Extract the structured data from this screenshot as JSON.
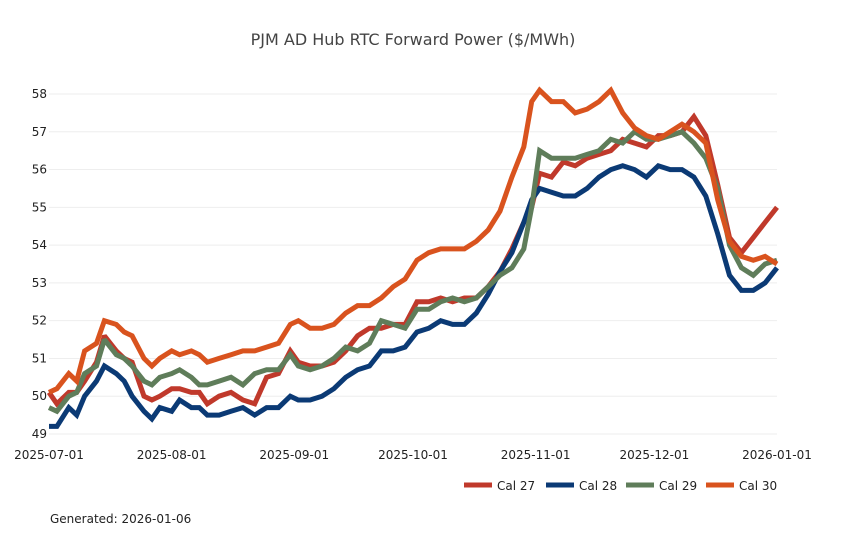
{
  "chart_data": {
    "type": "line",
    "title": "PJM AD Hub RTC Forward Power ($/MWh)",
    "xlabel": "",
    "ylabel": "",
    "x_range": [
      "2025-07-01",
      "2026-01-01"
    ],
    "ylim": [
      49,
      58.3
    ],
    "grid": true,
    "legend_position": "bottom-right",
    "x_ticks": [
      "2025-07-01",
      "2025-08-01",
      "2025-09-01",
      "2025-10-01",
      "2025-11-01",
      "2025-12-01",
      "2026-01-01"
    ],
    "y_ticks": [
      49,
      50,
      51,
      52,
      53,
      54,
      55,
      56,
      57,
      58
    ],
    "x": [
      "2025-07-01",
      "2025-07-03",
      "2025-07-06",
      "2025-07-08",
      "2025-07-10",
      "2025-07-13",
      "2025-07-15",
      "2025-07-18",
      "2025-07-20",
      "2025-07-22",
      "2025-07-25",
      "2025-07-27",
      "2025-07-29",
      "2025-08-01",
      "2025-08-03",
      "2025-08-06",
      "2025-08-08",
      "2025-08-10",
      "2025-08-13",
      "2025-08-16",
      "2025-08-19",
      "2025-08-22",
      "2025-08-25",
      "2025-08-28",
      "2025-08-31",
      "2025-09-02",
      "2025-09-05",
      "2025-09-08",
      "2025-09-11",
      "2025-09-14",
      "2025-09-17",
      "2025-09-20",
      "2025-09-23",
      "2025-09-26",
      "2025-09-29",
      "2025-10-02",
      "2025-10-05",
      "2025-10-08",
      "2025-10-11",
      "2025-10-14",
      "2025-10-17",
      "2025-10-20",
      "2025-10-23",
      "2025-10-26",
      "2025-10-29",
      "2025-10-31",
      "2025-11-02",
      "2025-11-05",
      "2025-11-08",
      "2025-11-11",
      "2025-11-14",
      "2025-11-17",
      "2025-11-20",
      "2025-11-23",
      "2025-11-26",
      "2025-11-29",
      "2025-12-02",
      "2025-12-05",
      "2025-12-08",
      "2025-12-11",
      "2025-12-14",
      "2025-12-17",
      "2025-12-20",
      "2025-12-23",
      "2025-12-26",
      "2025-12-29",
      "2026-01-01"
    ],
    "series": [
      {
        "name": "Cal 27",
        "color": "#c0392b",
        "values": [
          50.1,
          49.8,
          50.1,
          50.1,
          50.4,
          50.9,
          51.6,
          51.2,
          51.0,
          50.9,
          50.0,
          49.9,
          50.0,
          50.2,
          50.2,
          50.1,
          50.1,
          49.8,
          50.0,
          50.1,
          49.9,
          49.8,
          50.5,
          50.6,
          51.2,
          50.9,
          50.8,
          50.8,
          50.9,
          51.2,
          51.6,
          51.8,
          51.8,
          51.9,
          51.9,
          52.5,
          52.5,
          52.6,
          52.5,
          52.6,
          52.6,
          52.9,
          53.3,
          53.9,
          54.6,
          55.0,
          55.9,
          55.8,
          56.2,
          56.1,
          56.3,
          56.4,
          56.5,
          56.8,
          56.7,
          56.6,
          56.9,
          56.9,
          57.0,
          57.4,
          56.9,
          55.6,
          54.2,
          53.8,
          54.2,
          54.6,
          55.0
        ]
      },
      {
        "name": "Cal 28",
        "color": "#0b3a75",
        "values": [
          49.2,
          49.2,
          49.7,
          49.5,
          50.0,
          50.4,
          50.8,
          50.6,
          50.4,
          50.0,
          49.6,
          49.4,
          49.7,
          49.6,
          49.9,
          49.7,
          49.7,
          49.5,
          49.5,
          49.6,
          49.7,
          49.5,
          49.7,
          49.7,
          50.0,
          49.9,
          49.9,
          50.0,
          50.2,
          50.5,
          50.7,
          50.8,
          51.2,
          51.2,
          51.3,
          51.7,
          51.8,
          52.0,
          51.9,
          51.9,
          52.2,
          52.7,
          53.3,
          53.8,
          54.6,
          55.2,
          55.5,
          55.4,
          55.3,
          55.3,
          55.5,
          55.8,
          56.0,
          56.1,
          56.0,
          55.8,
          56.1,
          56.0,
          56.0,
          55.8,
          55.3,
          54.3,
          53.2,
          52.8,
          52.8,
          53.0,
          53.4
        ]
      },
      {
        "name": "Cal 29",
        "color": "#5f7d5a",
        "values": [
          49.7,
          49.6,
          50.0,
          50.1,
          50.6,
          50.8,
          51.5,
          51.1,
          51.0,
          50.8,
          50.4,
          50.3,
          50.5,
          50.6,
          50.7,
          50.5,
          50.3,
          50.3,
          50.4,
          50.5,
          50.3,
          50.6,
          50.7,
          50.7,
          51.1,
          50.8,
          50.7,
          50.8,
          51.0,
          51.3,
          51.2,
          51.4,
          52.0,
          51.9,
          51.8,
          52.3,
          52.3,
          52.5,
          52.6,
          52.5,
          52.6,
          52.9,
          53.2,
          53.4,
          53.9,
          55.0,
          56.5,
          56.3,
          56.3,
          56.3,
          56.4,
          56.5,
          56.8,
          56.7,
          57.0,
          56.8,
          56.8,
          56.9,
          57.0,
          56.7,
          56.3,
          55.5,
          54.0,
          53.4,
          53.2,
          53.5,
          53.6
        ]
      },
      {
        "name": "Cal 30",
        "color": "#d9531e",
        "values": [
          50.1,
          50.2,
          50.6,
          50.4,
          51.2,
          51.4,
          52.0,
          51.9,
          51.7,
          51.6,
          51.0,
          50.8,
          51.0,
          51.2,
          51.1,
          51.2,
          51.1,
          50.9,
          51.0,
          51.1,
          51.2,
          51.2,
          51.3,
          51.4,
          51.9,
          52.0,
          51.8,
          51.8,
          51.9,
          52.2,
          52.4,
          52.4,
          52.6,
          52.9,
          53.1,
          53.6,
          53.8,
          53.9,
          53.9,
          53.9,
          54.1,
          54.4,
          54.9,
          55.8,
          56.6,
          57.8,
          58.1,
          57.8,
          57.8,
          57.5,
          57.6,
          57.8,
          58.1,
          57.5,
          57.1,
          56.9,
          56.8,
          57.0,
          57.2,
          57.0,
          56.7,
          55.2,
          54.1,
          53.7,
          53.6,
          53.7,
          53.5
        ]
      }
    ]
  },
  "footer": {
    "generated_label": "Generated: 2026-01-06"
  }
}
